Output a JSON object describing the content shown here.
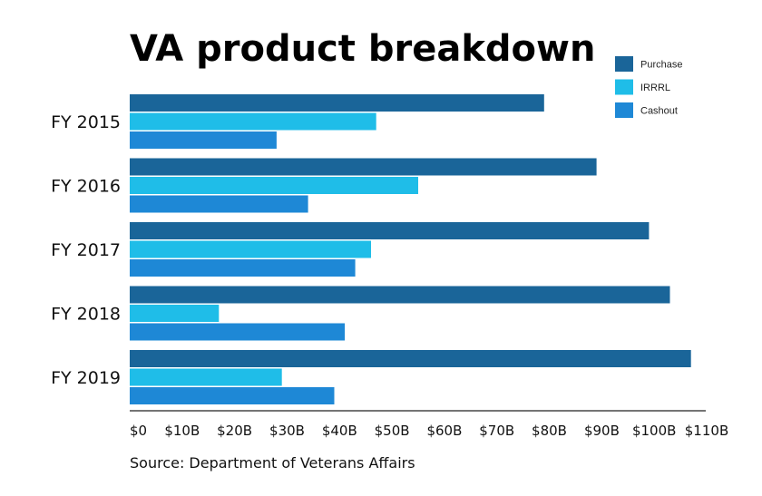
{
  "colors": {
    "purchase": "#1a6599",
    "irrrl": "#1fbde8",
    "cashout": "#1e88d6",
    "axis": "#222222"
  },
  "chart_data": {
    "type": "bar",
    "orientation": "horizontal",
    "title": "VA product breakdown",
    "source": "Source: Department of Veterans Affairs",
    "categories": [
      "FY 2015",
      "FY 2016",
      "FY 2017",
      "FY 2018",
      "FY 2019"
    ],
    "series": [
      {
        "name": "Purchase",
        "color_key": "purchase",
        "values": [
          79,
          89,
          99,
          103,
          107
        ]
      },
      {
        "name": "IRRRL",
        "color_key": "irrrl",
        "values": [
          47,
          55,
          46,
          17,
          29
        ]
      },
      {
        "name": "Cashout",
        "color_key": "cashout",
        "values": [
          28,
          34,
          43,
          41,
          39
        ]
      }
    ],
    "xlim": [
      0,
      110
    ],
    "x_ticks": [
      0,
      10,
      20,
      30,
      40,
      50,
      60,
      70,
      80,
      90,
      100,
      110
    ],
    "x_tick_labels": [
      "$0",
      "$10B",
      "$20B",
      "$30B",
      "$40B",
      "$50B",
      "$60B",
      "$70B",
      "$80B",
      "$90B",
      "$100B",
      "$110B"
    ],
    "legend": {
      "position": "top-right",
      "entries": [
        "Purchase",
        "IRRRL",
        "Cashout"
      ]
    },
    "grid": false
  }
}
